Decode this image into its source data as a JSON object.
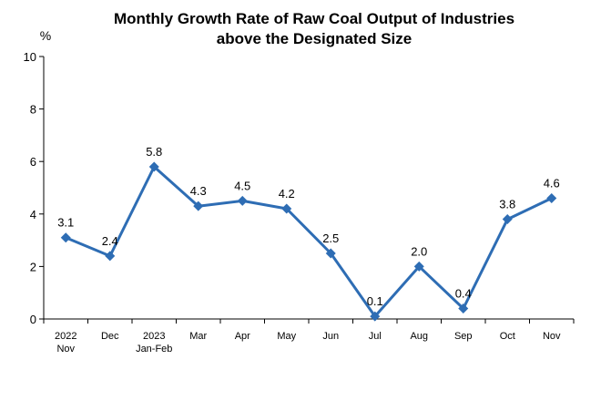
{
  "chart_data": {
    "type": "line",
    "title_lines": [
      "Monthly Growth Rate of Raw Coal Output of Industries",
      "above the Designated Size"
    ],
    "y_unit": "%",
    "ylim": [
      0,
      10
    ],
    "y_ticks": [
      0,
      2,
      4,
      6,
      8,
      10
    ],
    "grid": false,
    "legend": "none",
    "line_color": "#2E6DB4",
    "categories": [
      [
        "2022",
        "Nov"
      ],
      [
        "Dec"
      ],
      [
        "2023",
        "Jan-Feb"
      ],
      [
        "Mar"
      ],
      [
        "Apr"
      ],
      [
        "May"
      ],
      [
        "Jun"
      ],
      [
        "Jul"
      ],
      [
        "Aug"
      ],
      [
        "Sep"
      ],
      [
        "Oct"
      ],
      [
        "Nov"
      ]
    ],
    "values": [
      3.1,
      2.4,
      5.8,
      4.3,
      4.5,
      4.2,
      2.5,
      0.1,
      2.0,
      0.4,
      3.8,
      4.6
    ],
    "value_labels": [
      "3.1",
      "2.4",
      "5.8",
      "4.3",
      "4.5",
      "4.2",
      "2.5",
      "0.1",
      "2.0",
      "0.4",
      "3.8",
      "4.6"
    ]
  }
}
